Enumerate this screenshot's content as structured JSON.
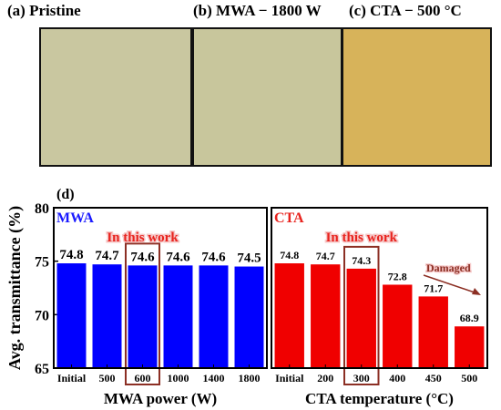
{
  "photos": {
    "a": {
      "caption": "(a) Pristine",
      "color": "#c9c7a0"
    },
    "b": {
      "caption": "(b) MWA − 1800 W",
      "color": "#c8c69c"
    },
    "c": {
      "caption": "(c) CTA − 500 °C",
      "color": "#d7b35a"
    }
  },
  "panel_label": "(d)",
  "chart_data": [
    {
      "type": "bar",
      "panel_title": "MWA",
      "panel_title_color": "#1a1aff",
      "bar_color": "#0000ff",
      "categories": [
        "Initial",
        "500",
        "600",
        "1000",
        "1400",
        "1800"
      ],
      "values": [
        74.8,
        74.7,
        74.6,
        74.6,
        74.6,
        74.5
      ],
      "value_labels": [
        "74.8",
        "74.7",
        "74.6",
        "74.6",
        "74.6",
        "74.5"
      ],
      "xlabel": "MWA power (W)",
      "ylabel": "Avg. transmittance (%)",
      "ylim": [
        65,
        80
      ],
      "yticks": [
        65,
        70,
        75,
        80
      ],
      "annotation": "In this work",
      "highlight_index": 2
    },
    {
      "type": "bar",
      "panel_title": "CTA",
      "panel_title_color": "#e8231e",
      "bar_color": "#f00000",
      "categories": [
        "Initial",
        "200",
        "300",
        "400",
        "450",
        "500"
      ],
      "values": [
        74.8,
        74.7,
        74.3,
        72.8,
        71.7,
        68.9
      ],
      "value_labels": [
        "74.8",
        "74.7",
        "74.3",
        "72.8",
        "71.7",
        "68.9"
      ],
      "xlabel": "CTA temperature (°C)",
      "ylim": [
        65,
        80
      ],
      "annotation": "In this work",
      "highlight_index": 2,
      "trend_label": "Damaged"
    }
  ]
}
